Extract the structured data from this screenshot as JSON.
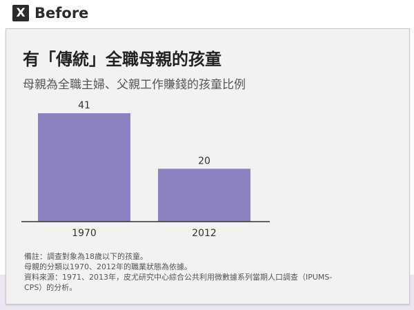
{
  "header": {
    "icon": "x-icon",
    "icon_text": "X",
    "label": "Before"
  },
  "chart_data": {
    "type": "bar",
    "title": "有「傳統」全職母親的孩童",
    "subtitle": "母親為全職主婦、父親工作賺錢的孩童比例",
    "categories": [
      "1970",
      "2012"
    ],
    "values": [
      41,
      20
    ],
    "ylim": [
      0,
      41
    ],
    "xlabel": "",
    "ylabel": "",
    "bar_color": "#8a83c0",
    "grid": false,
    "legend": "none"
  },
  "notes": [
    "備註：調查對象為18歲以下的孩童。",
    "母親的分類以1970、2012年的職業狀態為依據。",
    "資料來源：1971、2013年，皮尤研究中心綜合公共利用微數據系列當期人口調查（IPUMS-",
    "CPS）的分析。"
  ],
  "colors": {
    "background_band": "#ece6f2",
    "card": "#f2f2f2",
    "axis": "#333333"
  }
}
